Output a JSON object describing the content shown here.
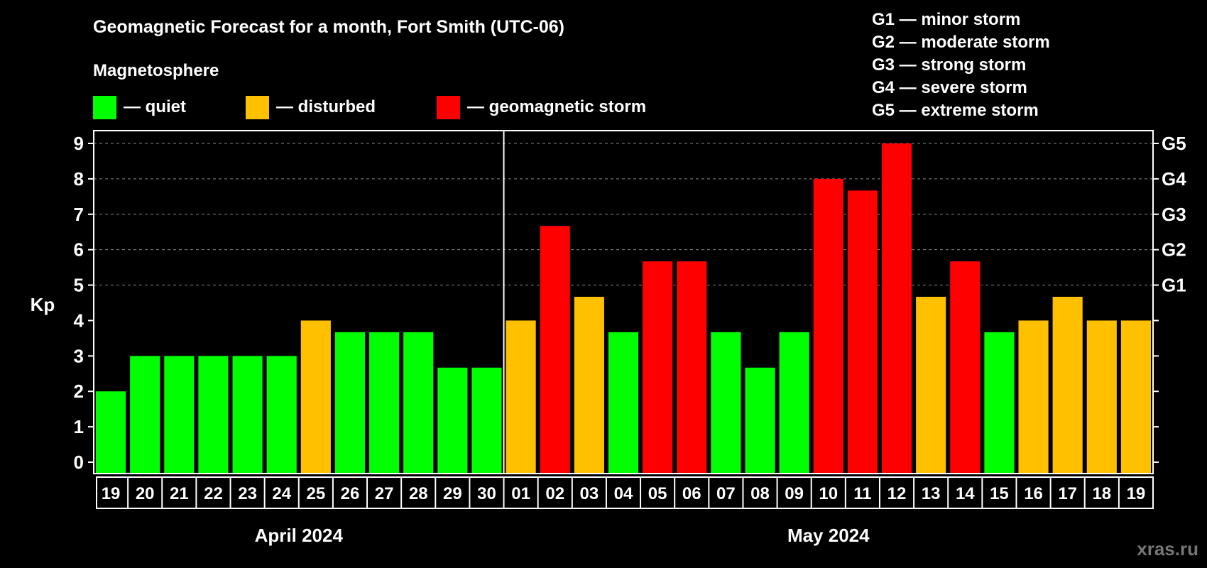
{
  "chart_data": {
    "type": "bar",
    "title": "Geomagnetic Forecast for a month, Fort Smith (UTC-06)",
    "ylabel": "Kp",
    "ylim": [
      0,
      9
    ],
    "yticks": [
      "0",
      "1",
      "2",
      "3",
      "4",
      "5",
      "6",
      "7",
      "8",
      "9"
    ],
    "right_ticks": [
      {
        "value": 5,
        "label": "G1"
      },
      {
        "value": 6,
        "label": "G2"
      },
      {
        "value": 7,
        "label": "G3"
      },
      {
        "value": 8,
        "label": "G4"
      },
      {
        "value": 9,
        "label": "G5"
      }
    ],
    "categories": [
      "19",
      "20",
      "21",
      "22",
      "23",
      "24",
      "25",
      "26",
      "27",
      "28",
      "29",
      "30",
      "01",
      "02",
      "03",
      "04",
      "05",
      "06",
      "07",
      "08",
      "09",
      "10",
      "11",
      "12",
      "13",
      "14",
      "15",
      "16",
      "17",
      "18",
      "19"
    ],
    "values": [
      2,
      3,
      3,
      3,
      3,
      3,
      4,
      3.67,
      3.67,
      3.67,
      2.67,
      2.67,
      4,
      6.67,
      4.67,
      3.67,
      5.67,
      5.67,
      3.67,
      2.67,
      3.67,
      8,
      7.67,
      9,
      4.67,
      5.67,
      3.67,
      4,
      4.67,
      4,
      4
    ],
    "status": [
      "quiet",
      "quiet",
      "quiet",
      "quiet",
      "quiet",
      "quiet",
      "disturbed",
      "quiet",
      "quiet",
      "quiet",
      "quiet",
      "quiet",
      "disturbed",
      "storm",
      "disturbed",
      "quiet",
      "storm",
      "storm",
      "quiet",
      "quiet",
      "quiet",
      "storm",
      "storm",
      "storm",
      "disturbed",
      "storm",
      "quiet",
      "disturbed",
      "disturbed",
      "disturbed",
      "disturbed"
    ],
    "months": [
      {
        "label": "April 2024",
        "days": 12
      },
      {
        "label": "May 2024",
        "days": 19
      }
    ],
    "grid": true
  },
  "legend": {
    "heading": "Magnetosphere",
    "items": [
      {
        "label": "— quiet",
        "color": "#00ff00"
      },
      {
        "label": "— disturbed",
        "color": "#ffc000"
      },
      {
        "label": "— geomagnetic storm",
        "color": "#ff0000"
      }
    ]
  },
  "scale": [
    "G1 — minor storm",
    "G2 — moderate storm",
    "G3 — strong storm",
    "G4 — severe storm",
    "G5 — extreme storm"
  ],
  "colors": {
    "quiet": "#00ff00",
    "disturbed": "#ffc000",
    "storm": "#ff0000"
  },
  "watermark": "xras.ru"
}
